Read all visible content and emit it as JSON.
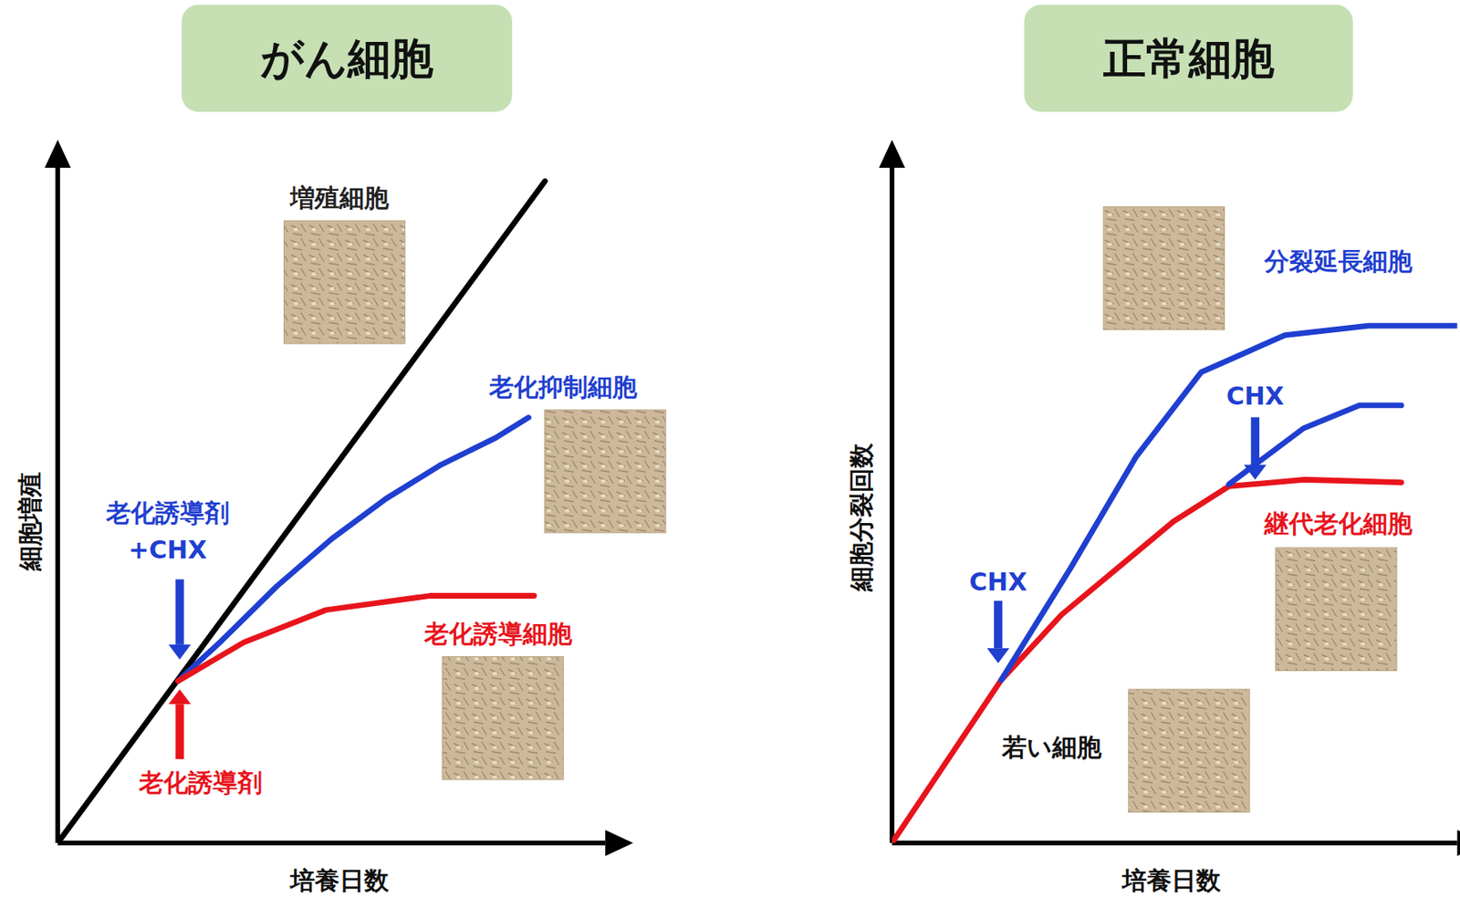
{
  "chart_data": [
    {
      "type": "line",
      "title": "がん細胞",
      "x_label": "培養日数",
      "y_label": "細胞増殖",
      "xlim": [
        0,
        100
      ],
      "ylim": [
        0,
        100
      ],
      "tick_labels": false,
      "grid": false,
      "series": [
        {
          "name": "増殖細胞",
          "color": "#000000",
          "x": [
            0,
            89
          ],
          "values": [
            0,
            98
          ]
        },
        {
          "name": "老化抑制細胞",
          "color": "#1f3fd0",
          "x": [
            22,
            30,
            40,
            50,
            60,
            70,
            80,
            86
          ],
          "values": [
            24,
            30,
            38,
            45,
            51,
            56,
            60,
            63
          ]
        },
        {
          "name": "老化誘導細胞",
          "color": "#e8141c",
          "x": [
            22,
            34,
            49,
            68,
            87
          ],
          "values": [
            24,
            29.7,
            34.5,
            36.6,
            36.6
          ]
        }
      ],
      "annotations": [
        {
          "text": "老化誘導剤+CHX"
        },
        {
          "text": "老化誘導剤"
        }
      ]
    },
    {
      "type": "line",
      "title": "正常細胞",
      "x_label": "培養日数",
      "y_label": "細胞分裂回数",
      "xlim": [
        0,
        100
      ],
      "ylim": [
        0,
        100
      ],
      "tick_labels": false,
      "grid": false,
      "series": [
        {
          "name": "継代老化細胞",
          "color": "#e8141c",
          "x": [
            0,
            19.3,
            30,
            39.9,
            49.8,
            59.6,
            72.8,
            90.1
          ],
          "values": [
            0,
            24.1,
            33.8,
            40.7,
            47.6,
            52.8,
            53.8,
            53.4
          ]
        },
        {
          "name": "分裂延長細胞",
          "color": "#1f3fd0",
          "x": [
            19.3,
            31.6,
            43.2,
            54.7,
            69.5,
            84.3,
            100
          ],
          "values": [
            24.1,
            40.7,
            57.2,
            69.7,
            75.2,
            76.6,
            76.6
          ]
        },
        {
          "color": "#1f3fd0",
          "x": [
            59.6,
            72.8,
            82.7,
            90.1
          ],
          "values": [
            53.1,
            61.4,
            64.8,
            64.8
          ]
        }
      ],
      "annotations": [
        {
          "text": "CHX"
        },
        {
          "text": "CHX"
        },
        {
          "text": "若い細胞"
        }
      ]
    }
  ]
}
